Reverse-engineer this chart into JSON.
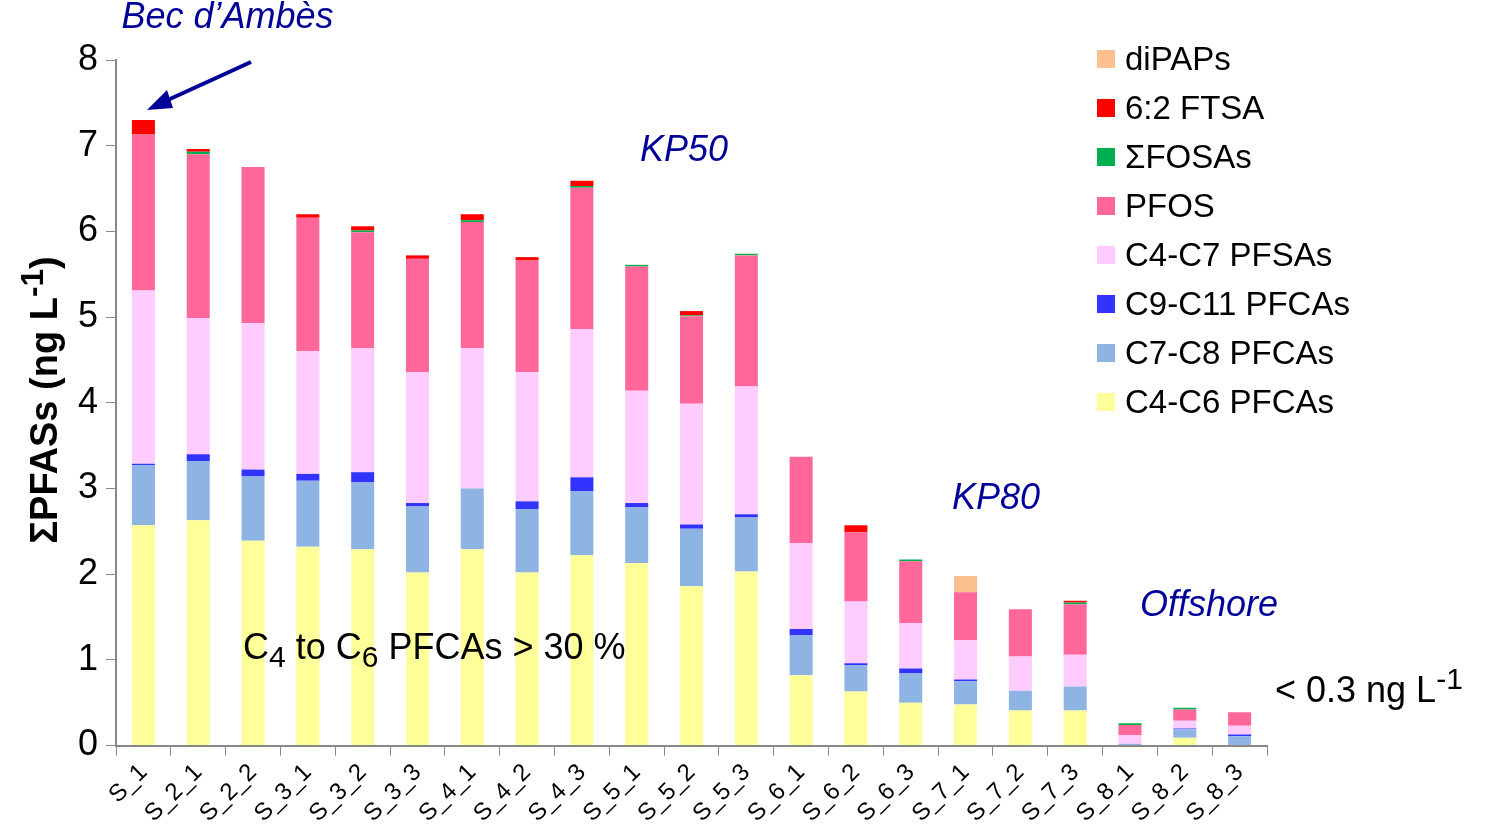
{
  "chart_data": {
    "type": "bar",
    "stacked": true,
    "ylabel": "ΣPFASs (ng L$^{-1}$)",
    "categories": [
      "S_1",
      "S_2_1",
      "S_2_2",
      "S_3_1",
      "S_3_2",
      "S_3_3",
      "S_4_1",
      "S_4_2",
      "S_4_3",
      "S_5_1",
      "S_5_2",
      "S_5_3",
      "S_6_1",
      "S_6_2",
      "S_6_3",
      "S_7_1",
      "S_7_2",
      "S_7_3",
      "S_8_1",
      "S_8_2",
      "S_8_3"
    ],
    "series": [
      {
        "name": "C4-C6 PFCAs",
        "color": "#ffff99",
        "values": [
          2.57,
          2.63,
          2.39,
          2.32,
          2.29,
          2.02,
          2.29,
          2.02,
          2.22,
          2.13,
          1.86,
          2.03,
          0.82,
          0.63,
          0.5,
          0.48,
          0.41,
          0.41,
          0,
          0.09,
          0
        ]
      },
      {
        "name": "C7-C8 PFCAs",
        "color": "#8eb4e3",
        "values": [
          0.7,
          0.69,
          0.75,
          0.77,
          0.78,
          0.77,
          0.71,
          0.74,
          0.75,
          0.65,
          0.67,
          0.63,
          0.47,
          0.31,
          0.34,
          0.27,
          0.23,
          0.28,
          0.02,
          0.1,
          0.11
        ]
      },
      {
        "name": "C9-C11 PFCAs",
        "color": "#3333ff",
        "values": [
          0.02,
          0.08,
          0.08,
          0.08,
          0.12,
          0.04,
          0,
          0.09,
          0.16,
          0.05,
          0.05,
          0.04,
          0.07,
          0.02,
          0.06,
          0.02,
          0,
          0,
          0,
          0.01,
          0.02
        ]
      },
      {
        "name": "C4-C7 PFSAs",
        "color": "#ffccff",
        "values": [
          2.02,
          1.59,
          1.71,
          1.43,
          1.45,
          1.53,
          1.64,
          1.51,
          1.73,
          1.31,
          1.41,
          1.49,
          1.0,
          0.72,
          0.53,
          0.46,
          0.4,
          0.37,
          0.1,
          0.09,
          0.1
        ]
      },
      {
        "name": "PFOS",
        "color": "#ff6699",
        "values": [
          1.82,
          1.91,
          1.82,
          1.56,
          1.35,
          1.32,
          1.47,
          1.3,
          1.65,
          1.45,
          1.02,
          1.53,
          1.01,
          0.81,
          0.72,
          0.56,
          0.55,
          0.59,
          0.12,
          0.13,
          0.16
        ]
      },
      {
        "name": "ΣFOSAs",
        "color": "#00b050",
        "values": [
          0,
          0.03,
          0,
          0,
          0.02,
          0,
          0.02,
          0,
          0.02,
          0.02,
          0.01,
          0.02,
          0,
          0,
          0.02,
          0,
          0,
          0.02,
          0.02,
          0.02,
          0
        ]
      },
      {
        "name": "6:2 FTSA",
        "color": "#ff0000",
        "values": [
          0.17,
          0.03,
          0,
          0.04,
          0.05,
          0.04,
          0.07,
          0.04,
          0.06,
          0,
          0.05,
          0,
          0,
          0.08,
          0,
          0,
          0,
          0.02,
          0,
          0,
          0
        ]
      },
      {
        "name": "diPAPs",
        "color": "#fac090",
        "values": [
          0,
          0,
          0,
          0,
          0,
          0,
          0,
          0,
          0,
          0,
          0,
          0,
          0,
          0,
          0,
          0.19,
          0,
          0,
          0,
          0,
          0
        ]
      }
    ],
    "ylim": [
      0,
      8
    ],
    "yticks": [
      0,
      1,
      2,
      3,
      4,
      5,
      6,
      7,
      8
    ],
    "legend": "top right",
    "annotations": [
      {
        "text": "Bec d’Ambès",
        "x": "S_1",
        "y": 7.3
      },
      "KP50",
      "KP80",
      "Offshore",
      "C$_{4}$ to C$_{6}$ PFCAs > 30 %",
      "< 0.3 ng L$^{-1}$"
    ]
  }
}
